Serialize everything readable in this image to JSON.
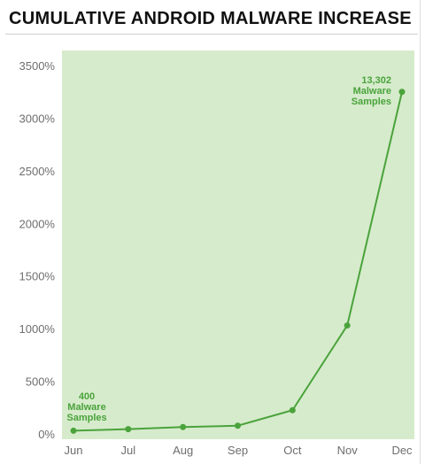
{
  "chart_data": {
    "type": "line",
    "title": "CUMULATIVE ANDROID MALWARE INCREASE",
    "categories": [
      "Jun",
      "Jul",
      "Aug",
      "Sep",
      "Oct",
      "Nov",
      "Dec"
    ],
    "values": [
      30,
      45,
      65,
      78,
      225,
      1030,
      3250
    ],
    "ylim": [
      0,
      3500
    ],
    "yticks": [
      0,
      500,
      1000,
      1500,
      2000,
      2500,
      3000,
      3500
    ],
    "ytick_labels": [
      "0%",
      "500%",
      "1000%",
      "1500%",
      "2000%",
      "2500%",
      "3000%",
      "3500%"
    ],
    "grid": false,
    "annotations": [
      {
        "point": "Jun",
        "lines": [
          "400",
          "Malware",
          "Samples"
        ]
      },
      {
        "point": "Dec",
        "lines": [
          "13,302",
          "Malware",
          "Samples"
        ]
      }
    ],
    "colors": {
      "line": "#4aa33b",
      "background": "#d6ebcc",
      "text": "#6e6e6e"
    }
  }
}
